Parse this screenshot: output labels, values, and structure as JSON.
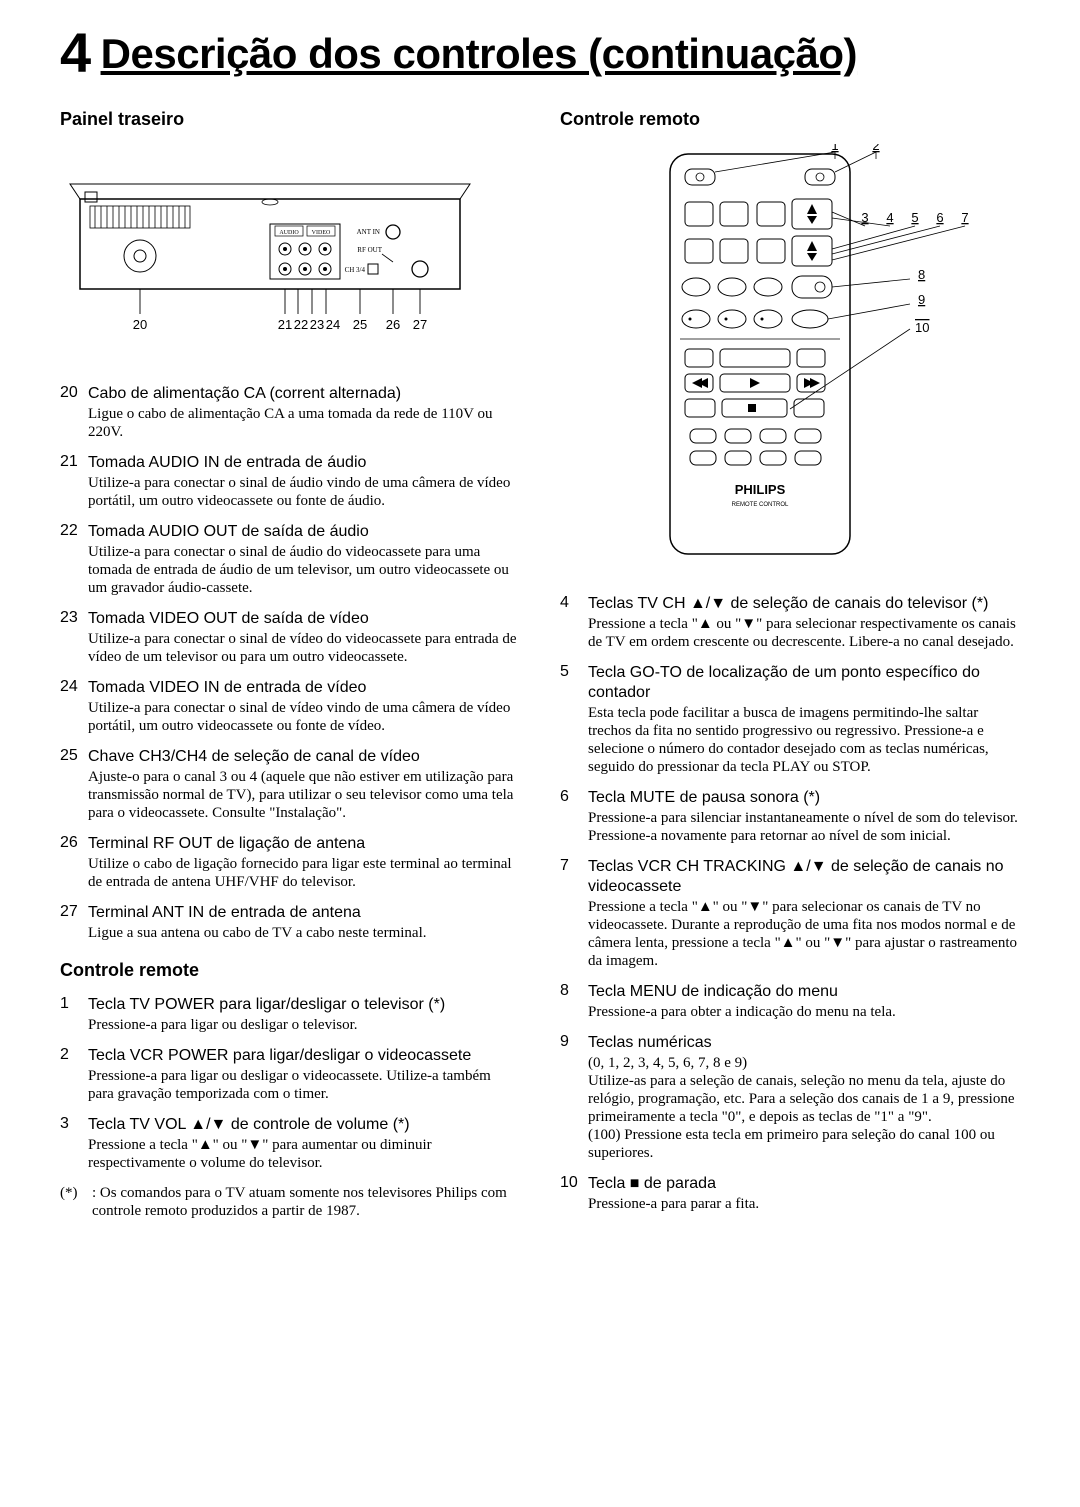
{
  "title_number": "4",
  "title_text": "Descrição dos controles (continuação)",
  "left": {
    "heading_rear": "Painel traseiro",
    "rear_panel_labels": [
      "20",
      "21",
      "22",
      "23",
      "24",
      "25",
      "26",
      "27"
    ],
    "jack_labels": {
      "audio": "AUDIO",
      "video": "VIDEO",
      "antin": "ANT IN",
      "rfout": "RF OUT",
      "ch": "CH 3/4"
    },
    "items_rear": [
      {
        "n": "20",
        "label": "Cabo de alimentação CA (corrent alternada)",
        "desc": "Ligue o cabo de alimentação CA a uma tomada da rede de 110V ou 220V."
      },
      {
        "n": "21",
        "label": "Tomada AUDIO IN de entrada de áudio",
        "desc": "Utilize-a para conectar o sinal de áudio vindo de uma câmera de vídeo portátil, um outro videocassete ou fonte de áudio."
      },
      {
        "n": "22",
        "label": "Tomada AUDIO OUT de saída de áudio",
        "desc": "Utilize-a para conectar o sinal de áudio do videocassete para uma tomada de entrada de áudio de um televisor, um outro videocassete ou um gravador áudio-cassete."
      },
      {
        "n": "23",
        "label": "Tomada VIDEO OUT de saída de vídeo",
        "desc": "Utilize-a para conectar o sinal de vídeo do videocassete para entrada de vídeo de um televisor ou para um outro videocassete."
      },
      {
        "n": "24",
        "label": "Tomada VIDEO IN de entrada de vídeo",
        "desc": "Utilize-a para conectar o sinal de vídeo vindo de uma câmera de vídeo portátil, um outro videocassete ou fonte de vídeo."
      },
      {
        "n": "25",
        "label": "Chave CH3/CH4 de seleção de canal de vídeo",
        "desc": "Ajuste-o para o canal 3 ou 4 (aquele que não estiver em utilização para transmissão normal de TV), para utilizar o seu televisor como uma tela para o videocassete. Consulte \"Instalação\"."
      },
      {
        "n": "26",
        "label": "Terminal RF OUT de ligação de antena",
        "desc": "Utilize o cabo de ligação fornecido para ligar este terminal ao terminal de entrada de antena UHF/VHF do televisor."
      },
      {
        "n": "27",
        "label": "Terminal ANT IN de entrada de antena",
        "desc": "Ligue a sua antena ou cabo de TV a cabo neste terminal."
      }
    ],
    "heading_remote": "Controle remote",
    "items_remote_left": [
      {
        "n": "1",
        "label": "Tecla TV POWER para ligar/desligar o televisor (*)",
        "desc": "Pressione-a para ligar ou desligar o televisor."
      },
      {
        "n": "2",
        "label": "Tecla VCR POWER para ligar/desligar o videocassete",
        "desc": "Pressione-a para ligar ou desligar o videocassete. Utilize-a também para gravação temporizada com o timer."
      },
      {
        "n": "3",
        "label": "Tecla TV VOL ▲/▼ de controle de volume (*)",
        "desc": "Pressione a tecla \"▲\" ou \"▼\" para aumentar ou diminuir respectivamente o volume do televisor."
      }
    ],
    "footnote_mark": "(*)",
    "footnote_text": ": Os comandos para o TV atuam somente nos televisores Philips com controle remoto produzidos a partir de 1987."
  },
  "right": {
    "heading_remote": "Controle remoto",
    "remote_brand": "PHILIPS",
    "remote_subtext": "REMOTE CONTROL",
    "remote_side_labels": [
      "1",
      "2",
      "3",
      "4",
      "5",
      "6",
      "7",
      "8",
      "9",
      "10"
    ],
    "items": [
      {
        "n": "4",
        "label": "Teclas TV CH ▲/▼ de seleção de canais do televisor (*)",
        "desc": "Pressione a tecla \"▲ ou \"▼\" para selecionar respectivamente os canais de TV em ordem crescente ou decrescente. Libere-a no canal desejado."
      },
      {
        "n": "5",
        "label": "Tecla GO-TO de localização de um ponto específico do contador",
        "desc": "Esta tecla pode facilitar a busca de imagens permitindo-lhe saltar trechos da fita no sentido progressivo ou regressivo. Pressione-a e selecione o número do contador desejado com as teclas numéricas, seguido do pressionar da tecla PLAY ou STOP."
      },
      {
        "n": "6",
        "label": "Tecla MUTE de pausa sonora (*)",
        "desc": "Pressione-a para silenciar instantaneamente o nível de som do televisor. Pressione-a novamente para retornar ao nível de som inicial."
      },
      {
        "n": "7",
        "label": "Teclas VCR CH TRACKING ▲/▼ de seleção de canais no videocassete",
        "desc": "Pressione a tecla \"▲\" ou \"▼\" para selecionar os canais de TV no videocassete. Durante a reprodução de uma fita nos modos normal e de câmera lenta, pressione a tecla \"▲\" ou \"▼\" para ajustar o rastreamento da imagem."
      },
      {
        "n": "8",
        "label": "Tecla MENU de indicação do menu",
        "desc": "Pressione-a para obter a indicação do menu na tela."
      },
      {
        "n": "9",
        "label": "Teclas numéricas",
        "desc": "(0, 1, 2, 3, 4, 5, 6, 7, 8 e 9)\nUtilize-as para a seleção de canais, seleção no menu da tela, ajuste do relógio, programação, etc. Para a seleção dos canais de 1 a 9, pressione primeiramente a tecla \"0\", e depois as teclas de \"1\" a \"9\".\n(100) Pressione esta tecla em primeiro para seleção do canal 100 ou superiores."
      },
      {
        "n": "10",
        "label": "Tecla ■ de parada",
        "desc": "Pressione-a para parar a fita."
      }
    ]
  }
}
